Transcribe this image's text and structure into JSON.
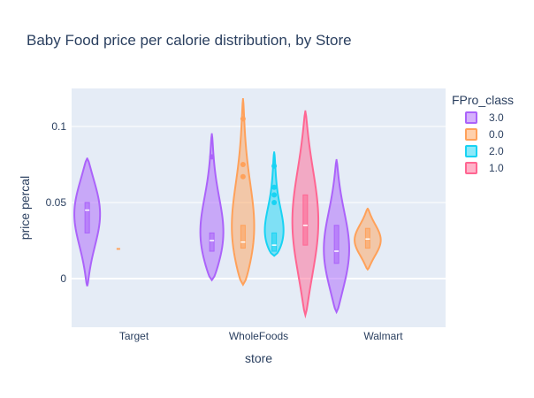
{
  "chart_data": {
    "type": "violin",
    "title": "Baby Food price per calorie distribution, by Store",
    "xlabel": "store",
    "ylabel": "price percal",
    "categories": [
      "Target",
      "WholeFoods",
      "Walmart"
    ],
    "ylim": [
      -0.032,
      0.125
    ],
    "yticks": [
      0,
      0.05,
      0.1
    ],
    "ytick_labels": [
      "0",
      "0.05",
      "0.1"
    ],
    "grid": true,
    "legend_title": "FPro_class",
    "legend_placement": "right",
    "series": [
      {
        "name": "3.0",
        "color": "#ab63fa",
        "groups": [
          {
            "category": "Target",
            "min": -0.005,
            "max": 0.079,
            "q1": 0.03,
            "median": 0.045,
            "q3": 0.05,
            "mode": 0.045,
            "points": []
          },
          {
            "category": "WholeFoods",
            "min": -0.001,
            "max": 0.095,
            "q1": 0.018,
            "median": 0.025,
            "q3": 0.03,
            "mode": 0.022,
            "points": [
              0.08
            ]
          },
          {
            "category": "Walmart",
            "min": -0.022,
            "max": 0.078,
            "q1": 0.01,
            "median": 0.018,
            "q3": 0.035,
            "mode": 0.015,
            "points": []
          }
        ]
      },
      {
        "name": "0.0",
        "color": "#ffa15a",
        "groups": [
          {
            "category": "Target",
            "min": 0.019,
            "max": 0.02,
            "q1": 0.019,
            "median": 0.0195,
            "q3": 0.02,
            "mode": 0.0195,
            "points": []
          },
          {
            "category": "WholeFoods",
            "min": -0.004,
            "max": 0.118,
            "q1": 0.02,
            "median": 0.024,
            "q3": 0.035,
            "mode": 0.022,
            "points": [
              0.105,
              0.075,
              0.067
            ]
          },
          {
            "category": "Walmart",
            "min": 0.006,
            "max": 0.046,
            "q1": 0.02,
            "median": 0.026,
            "q3": 0.033,
            "mode": 0.025,
            "points": []
          }
        ]
      },
      {
        "name": "2.0",
        "color": "#19d3f3",
        "groups": [
          {
            "category": "WholeFoods",
            "min": 0.015,
            "max": 0.083,
            "q1": 0.018,
            "median": 0.022,
            "q3": 0.03,
            "mode": 0.021,
            "points": [
              0.074,
              0.06,
              0.055,
              0.05
            ]
          }
        ]
      },
      {
        "name": "1.0",
        "color": "#ff6692",
        "groups": [
          {
            "category": "WholeFoods",
            "min": -0.024,
            "max": 0.11,
            "q1": 0.022,
            "median": 0.035,
            "q3": 0.055,
            "mode": 0.035,
            "points": []
          }
        ]
      }
    ]
  }
}
